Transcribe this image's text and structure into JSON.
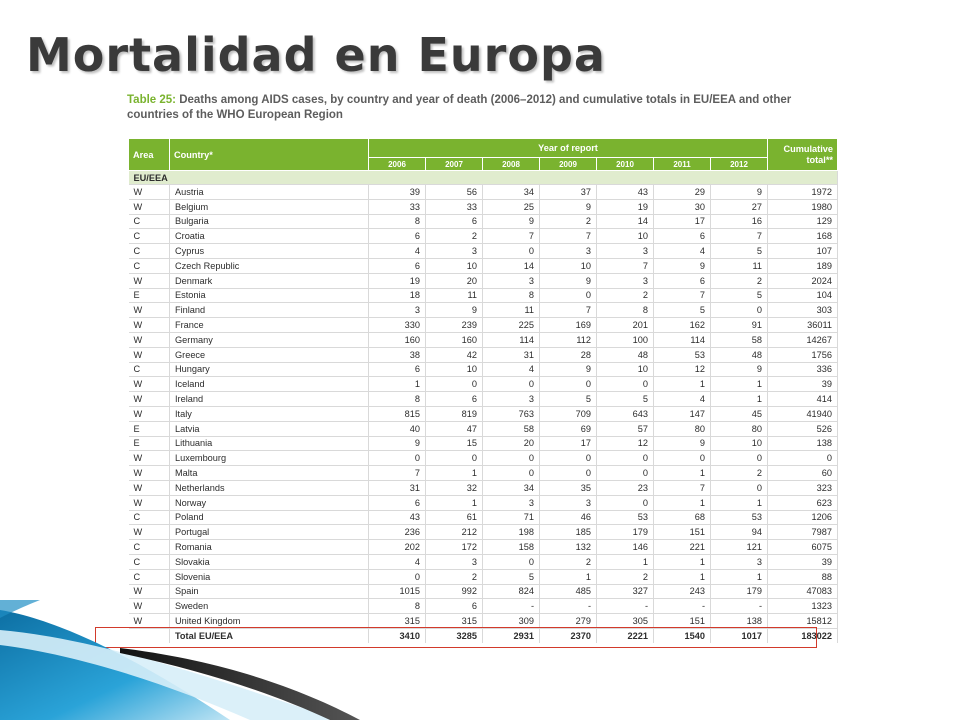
{
  "slide": {
    "title": "Mortalidad en Europa"
  },
  "caption": {
    "label": "Table 25:",
    "text": "Deaths among AIDS cases, by country and year of death (2006–2012) and cumulative totals in EU/EEA and other countries of the WHO European Region"
  },
  "table": {
    "headers": {
      "area": "Area",
      "country": "Country*",
      "year_group": "Year of report",
      "years": [
        "2006",
        "2007",
        "2008",
        "2009",
        "2010",
        "2011",
        "2012"
      ],
      "cumulative": "Cumulative total**"
    },
    "section_label": "EU/EEA",
    "rows": [
      {
        "area": "W",
        "country": "Austria",
        "values": [
          "39",
          "56",
          "34",
          "37",
          "43",
          "29",
          "9"
        ],
        "total": "1972"
      },
      {
        "area": "W",
        "country": "Belgium",
        "values": [
          "33",
          "33",
          "25",
          "9",
          "19",
          "30",
          "27"
        ],
        "total": "1980"
      },
      {
        "area": "C",
        "country": "Bulgaria",
        "values": [
          "8",
          "6",
          "9",
          "2",
          "14",
          "17",
          "16"
        ],
        "total": "129"
      },
      {
        "area": "C",
        "country": "Croatia",
        "values": [
          "6",
          "2",
          "7",
          "7",
          "10",
          "6",
          "7"
        ],
        "total": "168"
      },
      {
        "area": "C",
        "country": "Cyprus",
        "values": [
          "4",
          "3",
          "0",
          "3",
          "3",
          "4",
          "5"
        ],
        "total": "107"
      },
      {
        "area": "C",
        "country": "Czech Republic",
        "values": [
          "6",
          "10",
          "14",
          "10",
          "7",
          "9",
          "11"
        ],
        "total": "189"
      },
      {
        "area": "W",
        "country": "Denmark",
        "values": [
          "19",
          "20",
          "3",
          "9",
          "3",
          "6",
          "2"
        ],
        "total": "2024"
      },
      {
        "area": "E",
        "country": "Estonia",
        "values": [
          "18",
          "11",
          "8",
          "0",
          "2",
          "7",
          "5"
        ],
        "total": "104"
      },
      {
        "area": "W",
        "country": "Finland",
        "values": [
          "3",
          "9",
          "11",
          "7",
          "8",
          "5",
          "0"
        ],
        "total": "303"
      },
      {
        "area": "W",
        "country": "France",
        "values": [
          "330",
          "239",
          "225",
          "169",
          "201",
          "162",
          "91"
        ],
        "total": "36011"
      },
      {
        "area": "W",
        "country": "Germany",
        "values": [
          "160",
          "160",
          "114",
          "112",
          "100",
          "114",
          "58"
        ],
        "total": "14267"
      },
      {
        "area": "W",
        "country": "Greece",
        "values": [
          "38",
          "42",
          "31",
          "28",
          "48",
          "53",
          "48"
        ],
        "total": "1756"
      },
      {
        "area": "C",
        "country": "Hungary",
        "values": [
          "6",
          "10",
          "4",
          "9",
          "10",
          "12",
          "9"
        ],
        "total": "336"
      },
      {
        "area": "W",
        "country": "Iceland",
        "values": [
          "1",
          "0",
          "0",
          "0",
          "0",
          "1",
          "1"
        ],
        "total": "39"
      },
      {
        "area": "W",
        "country": "Ireland",
        "values": [
          "8",
          "6",
          "3",
          "5",
          "5",
          "4",
          "1"
        ],
        "total": "414"
      },
      {
        "area": "W",
        "country": "Italy",
        "values": [
          "815",
          "819",
          "763",
          "709",
          "643",
          "147",
          "45"
        ],
        "total": "41940"
      },
      {
        "area": "E",
        "country": "Latvia",
        "values": [
          "40",
          "47",
          "58",
          "69",
          "57",
          "80",
          "80"
        ],
        "total": "526"
      },
      {
        "area": "E",
        "country": "Lithuania",
        "values": [
          "9",
          "15",
          "20",
          "17",
          "12",
          "9",
          "10"
        ],
        "total": "138"
      },
      {
        "area": "W",
        "country": "Luxembourg",
        "values": [
          "0",
          "0",
          "0",
          "0",
          "0",
          "0",
          "0"
        ],
        "total": "0"
      },
      {
        "area": "W",
        "country": "Malta",
        "values": [
          "7",
          "1",
          "0",
          "0",
          "0",
          "1",
          "2"
        ],
        "total": "60"
      },
      {
        "area": "W",
        "country": "Netherlands",
        "values": [
          "31",
          "32",
          "34",
          "35",
          "23",
          "7",
          "0"
        ],
        "total": "323"
      },
      {
        "area": "W",
        "country": "Norway",
        "values": [
          "6",
          "1",
          "3",
          "3",
          "0",
          "1",
          "1"
        ],
        "total": "623"
      },
      {
        "area": "C",
        "country": "Poland",
        "values": [
          "43",
          "61",
          "71",
          "46",
          "53",
          "68",
          "53"
        ],
        "total": "1206"
      },
      {
        "area": "W",
        "country": "Portugal",
        "values": [
          "236",
          "212",
          "198",
          "185",
          "179",
          "151",
          "94"
        ],
        "total": "7987"
      },
      {
        "area": "C",
        "country": "Romania",
        "values": [
          "202",
          "172",
          "158",
          "132",
          "146",
          "221",
          "121"
        ],
        "total": "6075"
      },
      {
        "area": "C",
        "country": "Slovakia",
        "values": [
          "4",
          "3",
          "0",
          "2",
          "1",
          "1",
          "3"
        ],
        "total": "39"
      },
      {
        "area": "C",
        "country": "Slovenia",
        "values": [
          "0",
          "2",
          "5",
          "1",
          "2",
          "1",
          "1"
        ],
        "total": "88"
      },
      {
        "area": "W",
        "country": "Spain",
        "values": [
          "1015",
          "992",
          "824",
          "485",
          "327",
          "243",
          "179"
        ],
        "total": "47083"
      },
      {
        "area": "W",
        "country": "Sweden",
        "values": [
          "8",
          "6",
          "-",
          "-",
          "-",
          "-",
          "-"
        ],
        "total": "1323"
      },
      {
        "area": "W",
        "country": "United Kingdom",
        "values": [
          "315",
          "315",
          "309",
          "279",
          "305",
          "151",
          "138"
        ],
        "total": "15812"
      }
    ],
    "total_row": {
      "area": "",
      "country": "Total EU/EEA",
      "values": [
        "3410",
        "3285",
        "2931",
        "2370",
        "2221",
        "1540",
        "1017"
      ],
      "total": "183022"
    }
  },
  "colors": {
    "header_green": "#7ab32f",
    "section_fill": "#e0ecce",
    "highlight_red": "#d23a2b",
    "swoosh_blue": "#1f8fc4"
  }
}
